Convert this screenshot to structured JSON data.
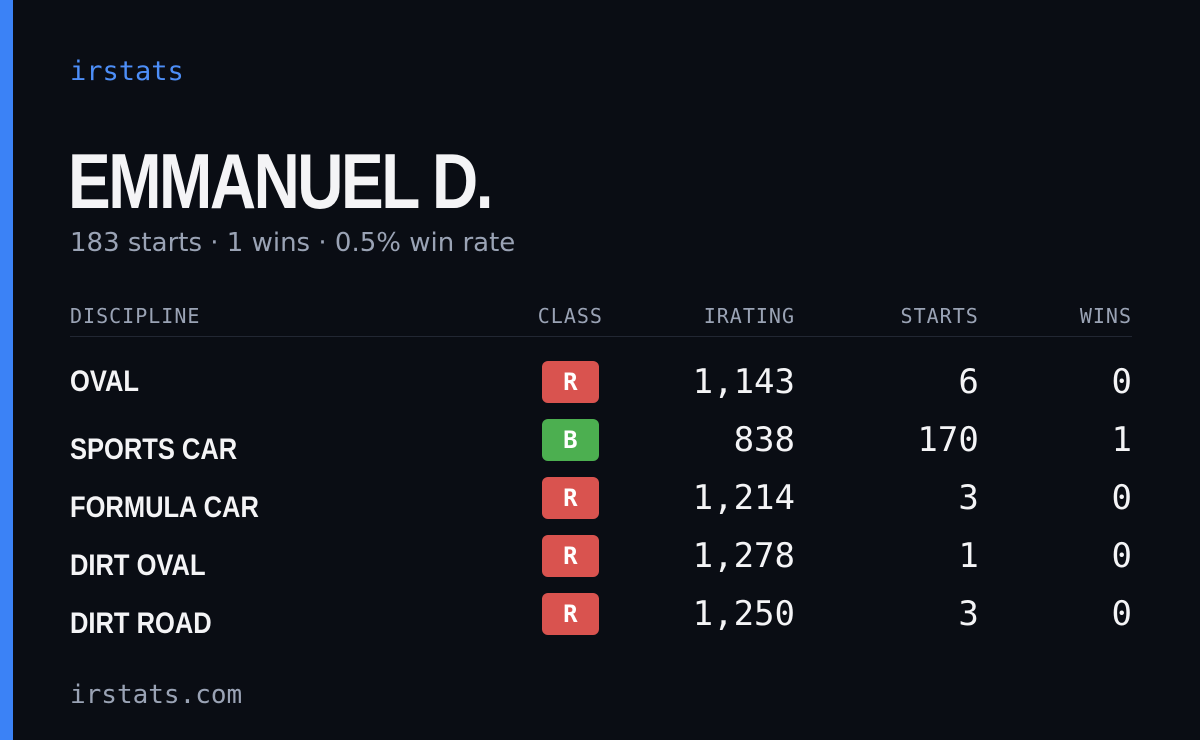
{
  "brand": "irstats",
  "name": "EMMANUEL D.",
  "summary": "183 starts · 1 wins · 0.5% win rate",
  "table": {
    "headers": [
      "DISCIPLINE",
      "CLASS",
      "IRATING",
      "STARTS",
      "WINS"
    ],
    "rows": [
      [
        "OVAL",
        "R",
        "1,143",
        "6",
        "0"
      ],
      [
        "SPORTS CAR",
        "B",
        "838",
        "170",
        "1"
      ],
      [
        "FORMULA CAR",
        "R",
        "1,214",
        "3",
        "0"
      ],
      [
        "DIRT OVAL",
        "R",
        "1,278",
        "1",
        "0"
      ],
      [
        "DIRT ROAD",
        "R",
        "1,250",
        "3",
        "0"
      ]
    ]
  },
  "footer": "irstats.com"
}
